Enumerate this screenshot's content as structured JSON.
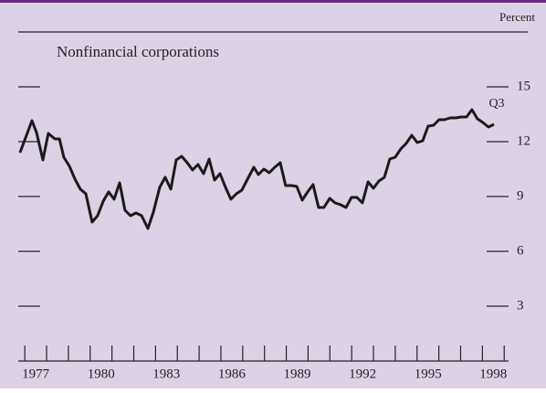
{
  "chart_data": {
    "type": "line",
    "title": "Nonfinancial corporations",
    "unit_label": "Percent",
    "annotation": "Q3",
    "x": [
      1976.78,
      1977.33,
      1977.54,
      1977.83,
      1978.08,
      1978.38,
      1978.59,
      1978.79,
      1979.05,
      1979.3,
      1979.55,
      1979.8,
      1980.09,
      1980.34,
      1980.6,
      1980.85,
      1981.1,
      1981.35,
      1981.6,
      1981.85,
      1982.1,
      1982.36,
      1982.65,
      1982.9,
      1983.19,
      1983.44,
      1983.7,
      1983.95,
      1984.2,
      1984.45,
      1984.7,
      1984.95,
      1985.2,
      1985.46,
      1985.71,
      1985.96,
      1986.21,
      1986.46,
      1986.71,
      1986.96,
      1987.22,
      1987.51,
      1987.72,
      1987.97,
      1988.22,
      1988.47,
      1988.72,
      1988.97,
      1989.23,
      1989.48,
      1989.73,
      1989.98,
      1990.23,
      1990.48,
      1990.73,
      1990.99,
      1991.24,
      1991.49,
      1991.74,
      1991.99,
      1992.24,
      1992.49,
      1992.75,
      1993.0,
      1993.25,
      1993.5,
      1993.75,
      1994.0,
      1994.25,
      1994.5,
      1994.76,
      1995.01,
      1995.26,
      1995.51,
      1995.76,
      1996.01,
      1996.26,
      1996.52,
      1996.77,
      1997.02,
      1997.27,
      1997.52,
      1997.77,
      1998.02,
      1998.28,
      1998.53
    ],
    "series": [
      {
        "color": "#1a1a1a",
        "values": [
          11.4,
          13.15,
          12.5,
          11,
          12.45,
          12.15,
          12.15,
          11.15,
          10.65,
          9.95,
          9.4,
          9.15,
          7.6,
          7.95,
          8.75,
          9.25,
          8.85,
          9.75,
          8.25,
          7.95,
          8.1,
          7.95,
          7.25,
          8.15,
          9.5,
          10.05,
          9.4,
          11,
          11.2,
          10.85,
          10.45,
          10.75,
          10.25,
          11.05,
          9.9,
          10.25,
          9.5,
          8.85,
          9.15,
          9.35,
          9.95,
          10.6,
          10.2,
          10.5,
          10.3,
          10.6,
          10.85,
          9.6,
          9.6,
          9.55,
          8.8,
          9.25,
          9.65,
          8.4,
          8.4,
          8.9,
          8.65,
          8.55,
          8.4,
          8.95,
          8.95,
          8.65,
          9.8,
          9.45,
          9.85,
          10.05,
          11.05,
          11.15,
          11.6,
          11.9,
          12.35,
          11.95,
          12.05,
          12.85,
          12.9,
          13.2,
          13.2,
          13.3,
          13.3,
          13.35,
          13.35,
          13.75,
          13.25,
          13.05,
          12.8,
          12.95
        ]
      }
    ],
    "xlim": [
      1976.7,
      1999.2
    ],
    "xticks": [
      1977,
      1978,
      1979,
      1980,
      1981,
      1982,
      1983,
      1984,
      1985,
      1986,
      1987,
      1988,
      1989,
      1990,
      1991,
      1992,
      1993,
      1994,
      1995,
      1996,
      1997,
      1998,
      1999
    ],
    "xlabels": [
      1977,
      1980,
      1983,
      1986,
      1989,
      1992,
      1995,
      1998
    ],
    "ylim": [
      0,
      18
    ],
    "yticks": [
      3,
      6,
      9,
      12,
      15
    ]
  }
}
